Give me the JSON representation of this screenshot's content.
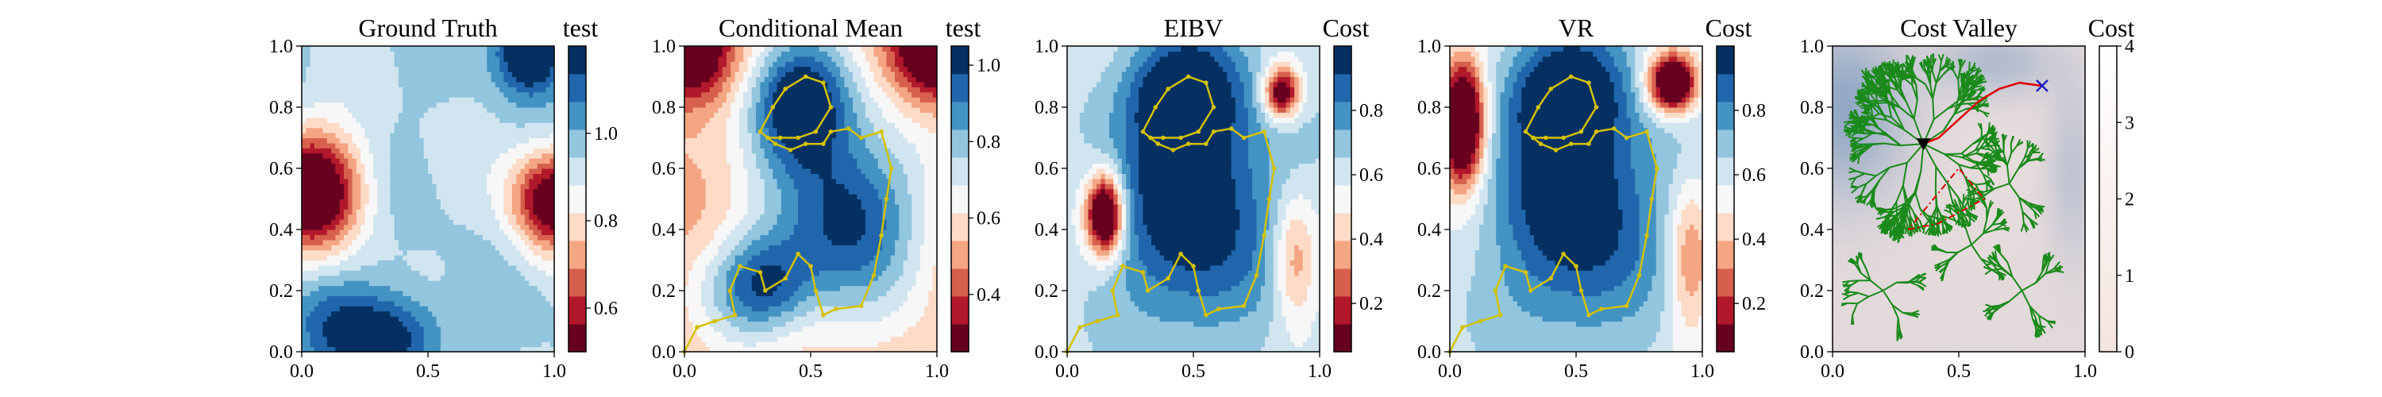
{
  "colors": {
    "rdbu": [
      "#67001f",
      "#b2182b",
      "#d6604d",
      "#f4a582",
      "#fddbc7",
      "#f7f7f7",
      "#d1e5f0",
      "#92c5de",
      "#4393c3",
      "#2166ac",
      "#053061"
    ],
    "path": "#d4c100",
    "tree": "#1a8a1a",
    "best_path": "#e00000",
    "start_marker": "#000000",
    "target_marker": "#2020c0",
    "boundary": "#e00000",
    "cost_low": "#f4e4e0",
    "cost_high": "#8fa6c4"
  },
  "chart_data": [
    {
      "type": "heatmap",
      "title": "Ground Truth",
      "colorbar_title": "test",
      "xlim": [
        0,
        1
      ],
      "ylim": [
        0,
        1
      ],
      "xticks": [
        "0.0",
        "0.5",
        "1.0"
      ],
      "yticks": [
        "0.0",
        "0.2",
        "0.4",
        "0.6",
        "0.8",
        "1.0"
      ],
      "colorbar_ticks": [
        "0.6",
        "0.8",
        "1.0"
      ],
      "colorbar_range": [
        0.5,
        1.2
      ],
      "blobs": [
        {
          "x": 0.04,
          "y": 0.53,
          "amp": -0.55,
          "sx": 0.14,
          "sy": 0.14
        },
        {
          "x": 1.0,
          "y": 0.5,
          "amp": -0.5,
          "sx": 0.12,
          "sy": 0.12
        },
        {
          "x": 0.9,
          "y": 0.98,
          "amp": 0.35,
          "sx": 0.09,
          "sy": 0.09
        },
        {
          "x": 0.35,
          "y": 0.05,
          "amp": 0.25,
          "sx": 0.14,
          "sy": 0.1
        },
        {
          "x": 0.1,
          "y": 0.1,
          "amp": 0.12,
          "sx": 0.12,
          "sy": 0.12
        }
      ],
      "base": 0.95
    },
    {
      "type": "heatmap",
      "title": "Conditional Mean",
      "colorbar_title": "test",
      "xlim": [
        0,
        1
      ],
      "ylim": [
        0,
        1
      ],
      "xticks": [
        "0.0",
        "0.5",
        "1.0"
      ],
      "yticks": [
        "0.0",
        "0.2",
        "0.4",
        "0.6",
        "0.8",
        "1.0"
      ],
      "colorbar_ticks": [
        "0.4",
        "0.6",
        "0.8",
        "1.0"
      ],
      "colorbar_range": [
        0.25,
        1.05
      ],
      "blobs": [
        {
          "x": 0.45,
          "y": 0.82,
          "amp": 0.5,
          "sx": 0.15,
          "sy": 0.15
        },
        {
          "x": 0.65,
          "y": 0.45,
          "amp": 0.45,
          "sx": 0.2,
          "sy": 0.22
        },
        {
          "x": 0.3,
          "y": 0.22,
          "amp": 0.4,
          "sx": 0.15,
          "sy": 0.12
        },
        {
          "x": 0.0,
          "y": 1.0,
          "amp": -0.5,
          "sx": 0.12,
          "sy": 0.12
        },
        {
          "x": 1.0,
          "y": 1.0,
          "amp": -0.5,
          "sx": 0.12,
          "sy": 0.12
        }
      ],
      "base": 0.55,
      "path": [
        [
          0.0,
          0.0
        ],
        [
          0.05,
          0.08
        ],
        [
          0.12,
          0.1
        ],
        [
          0.2,
          0.12
        ],
        [
          0.18,
          0.2
        ],
        [
          0.22,
          0.28
        ],
        [
          0.3,
          0.26
        ],
        [
          0.32,
          0.2
        ],
        [
          0.4,
          0.24
        ],
        [
          0.45,
          0.32
        ],
        [
          0.5,
          0.28
        ],
        [
          0.52,
          0.2
        ],
        [
          0.55,
          0.12
        ],
        [
          0.6,
          0.14
        ],
        [
          0.7,
          0.15
        ],
        [
          0.75,
          0.25
        ],
        [
          0.78,
          0.38
        ],
        [
          0.8,
          0.5
        ],
        [
          0.82,
          0.6
        ],
        [
          0.78,
          0.72
        ],
        [
          0.7,
          0.7
        ],
        [
          0.65,
          0.73
        ],
        [
          0.58,
          0.72
        ],
        [
          0.55,
          0.68
        ],
        [
          0.48,
          0.68
        ],
        [
          0.42,
          0.66
        ],
        [
          0.36,
          0.68
        ],
        [
          0.33,
          0.7
        ],
        [
          0.3,
          0.72
        ],
        [
          0.35,
          0.8
        ],
        [
          0.4,
          0.86
        ],
        [
          0.48,
          0.9
        ],
        [
          0.55,
          0.88
        ],
        [
          0.58,
          0.8
        ],
        [
          0.52,
          0.72
        ],
        [
          0.45,
          0.7
        ],
        [
          0.38,
          0.7
        ],
        [
          0.33,
          0.7
        ]
      ]
    },
    {
      "type": "heatmap",
      "title": "EIBV",
      "colorbar_title": "Cost",
      "xlim": [
        0,
        1
      ],
      "ylim": [
        0,
        1
      ],
      "xticks": [
        "0.0",
        "0.5",
        "1.0"
      ],
      "yticks": [
        "0.0",
        "0.2",
        "0.4",
        "0.6",
        "0.8",
        "1.0"
      ],
      "colorbar_ticks": [
        "0.2",
        "0.4",
        "0.6",
        "0.8"
      ],
      "colorbar_range": [
        0.05,
        1.0
      ],
      "blobs": [
        {
          "x": 0.15,
          "y": 0.45,
          "amp": -0.85,
          "sx": 0.05,
          "sy": 0.09
        },
        {
          "x": 0.85,
          "y": 0.85,
          "amp": -0.65,
          "sx": 0.05,
          "sy": 0.06
        },
        {
          "x": 0.5,
          "y": 0.5,
          "amp": 0.45,
          "sx": 0.22,
          "sy": 0.3
        },
        {
          "x": 0.45,
          "y": 0.85,
          "amp": 0.35,
          "sx": 0.15,
          "sy": 0.12
        },
        {
          "x": 0.9,
          "y": 0.3,
          "amp": -0.3,
          "sx": 0.06,
          "sy": 0.15
        }
      ],
      "base": 0.6,
      "path": [
        [
          0.0,
          0.0
        ],
        [
          0.05,
          0.08
        ],
        [
          0.12,
          0.1
        ],
        [
          0.2,
          0.12
        ],
        [
          0.18,
          0.2
        ],
        [
          0.22,
          0.28
        ],
        [
          0.3,
          0.26
        ],
        [
          0.32,
          0.2
        ],
        [
          0.4,
          0.24
        ],
        [
          0.45,
          0.32
        ],
        [
          0.5,
          0.28
        ],
        [
          0.52,
          0.2
        ],
        [
          0.55,
          0.12
        ],
        [
          0.6,
          0.14
        ],
        [
          0.7,
          0.15
        ],
        [
          0.75,
          0.25
        ],
        [
          0.78,
          0.38
        ],
        [
          0.8,
          0.5
        ],
        [
          0.82,
          0.6
        ],
        [
          0.78,
          0.72
        ],
        [
          0.7,
          0.7
        ],
        [
          0.65,
          0.73
        ],
        [
          0.58,
          0.72
        ],
        [
          0.55,
          0.68
        ],
        [
          0.48,
          0.68
        ],
        [
          0.42,
          0.66
        ],
        [
          0.36,
          0.68
        ],
        [
          0.33,
          0.7
        ],
        [
          0.3,
          0.72
        ],
        [
          0.35,
          0.8
        ],
        [
          0.4,
          0.86
        ],
        [
          0.48,
          0.9
        ],
        [
          0.55,
          0.88
        ],
        [
          0.58,
          0.8
        ],
        [
          0.52,
          0.72
        ],
        [
          0.45,
          0.7
        ],
        [
          0.38,
          0.7
        ],
        [
          0.33,
          0.7
        ]
      ]
    },
    {
      "type": "heatmap",
      "title": "VR",
      "colorbar_title": "Cost",
      "xlim": [
        0,
        1
      ],
      "ylim": [
        0,
        1
      ],
      "xticks": [
        "0.0",
        "0.5",
        "1.0"
      ],
      "yticks": [
        "0.0",
        "0.2",
        "0.4",
        "0.6",
        "0.8",
        "1.0"
      ],
      "colorbar_ticks": [
        "0.2",
        "0.4",
        "0.6",
        "0.8"
      ],
      "colorbar_range": [
        0.05,
        1.0
      ],
      "blobs": [
        {
          "x": 0.05,
          "y": 0.75,
          "amp": -0.9,
          "sx": 0.06,
          "sy": 0.14
        },
        {
          "x": 0.88,
          "y": 0.88,
          "amp": -0.8,
          "sx": 0.07,
          "sy": 0.07
        },
        {
          "x": 0.5,
          "y": 0.5,
          "amp": 0.45,
          "sx": 0.22,
          "sy": 0.3
        },
        {
          "x": 0.45,
          "y": 0.85,
          "amp": 0.35,
          "sx": 0.15,
          "sy": 0.12
        },
        {
          "x": 0.95,
          "y": 0.3,
          "amp": -0.3,
          "sx": 0.06,
          "sy": 0.18
        }
      ],
      "base": 0.6,
      "path": [
        [
          0.0,
          0.0
        ],
        [
          0.05,
          0.08
        ],
        [
          0.12,
          0.1
        ],
        [
          0.2,
          0.12
        ],
        [
          0.18,
          0.2
        ],
        [
          0.22,
          0.28
        ],
        [
          0.3,
          0.26
        ],
        [
          0.32,
          0.2
        ],
        [
          0.4,
          0.24
        ],
        [
          0.45,
          0.32
        ],
        [
          0.5,
          0.28
        ],
        [
          0.52,
          0.2
        ],
        [
          0.55,
          0.12
        ],
        [
          0.6,
          0.14
        ],
        [
          0.7,
          0.15
        ],
        [
          0.75,
          0.25
        ],
        [
          0.78,
          0.38
        ],
        [
          0.8,
          0.5
        ],
        [
          0.82,
          0.6
        ],
        [
          0.78,
          0.72
        ],
        [
          0.7,
          0.7
        ],
        [
          0.65,
          0.73
        ],
        [
          0.58,
          0.72
        ],
        [
          0.55,
          0.68
        ],
        [
          0.48,
          0.68
        ],
        [
          0.42,
          0.66
        ],
        [
          0.36,
          0.68
        ],
        [
          0.33,
          0.7
        ],
        [
          0.3,
          0.72
        ],
        [
          0.35,
          0.8
        ],
        [
          0.4,
          0.86
        ],
        [
          0.48,
          0.9
        ],
        [
          0.55,
          0.88
        ],
        [
          0.58,
          0.8
        ],
        [
          0.52,
          0.72
        ],
        [
          0.45,
          0.7
        ],
        [
          0.38,
          0.7
        ],
        [
          0.33,
          0.7
        ]
      ]
    },
    {
      "type": "heatmap",
      "title": "Cost Valley",
      "colorbar_title": "Cost",
      "xlim": [
        0,
        1
      ],
      "ylim": [
        0,
        1
      ],
      "xticks": [
        "0.0",
        "0.5",
        "1.0"
      ],
      "yticks": [
        "0.0",
        "0.2",
        "0.4",
        "0.6",
        "0.8",
        "1.0"
      ],
      "colorbar_ticks": [
        "0",
        "1",
        "2",
        "3",
        "4"
      ],
      "colorbar_range": [
        0,
        4
      ],
      "start": [
        0.36,
        0.68
      ],
      "target": [
        0.83,
        0.87
      ],
      "boundary_polygon": [
        [
          0.3,
          0.4
        ],
        [
          0.42,
          0.42
        ],
        [
          0.6,
          0.5
        ],
        [
          0.5,
          0.6
        ],
        [
          0.3,
          0.4
        ]
      ],
      "best_path": [
        [
          0.36,
          0.68
        ],
        [
          0.42,
          0.7
        ],
        [
          0.5,
          0.76
        ],
        [
          0.58,
          0.82
        ],
        [
          0.66,
          0.86
        ],
        [
          0.74,
          0.88
        ],
        [
          0.83,
          0.87
        ]
      ]
    }
  ]
}
